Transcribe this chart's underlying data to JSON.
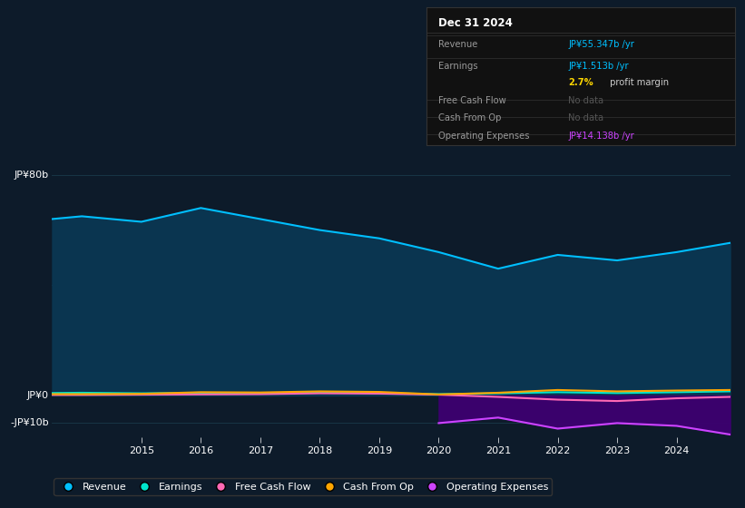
{
  "bg_color": "#0d1b2a",
  "plot_bg_color": "#0d1b2a",
  "grid_color": "#1a3a4a",
  "title": "Dec 31 2024",
  "ylabel_top": "JP¥80b",
  "ylabel_zero": "JP¥0",
  "ylabel_bottom": "-JP¥10b",
  "ylim": [
    -15000000000,
    90000000000
  ],
  "y_ticks": [
    80000000000,
    40000000000,
    0,
    -10000000000
  ],
  "x_years": [
    2013.5,
    2014,
    2015,
    2016,
    2017,
    2018,
    2019,
    2020,
    2021,
    2022,
    2023,
    2024,
    2024.9
  ],
  "revenue": [
    64000000000.0,
    65000000000.0,
    63000000000.0,
    68000000000.0,
    64000000000.0,
    60000000000.0,
    57000000000.0,
    52000000000.0,
    46000000000.0,
    51000000000.0,
    49000000000.0,
    52000000000.0,
    55347000000.0
  ],
  "earnings": [
    900000000.0,
    1000000000.0,
    800000000.0,
    1000000000.0,
    900000000.0,
    1100000000.0,
    900000000.0,
    500000000.0,
    800000000.0,
    1200000000.0,
    900000000.0,
    1200000000.0,
    1513000000.0
  ],
  "free_cash_flow": [
    200000000.0,
    200000000.0,
    300000000.0,
    400000000.0,
    500000000.0,
    800000000.0,
    700000000.0,
    300000000.0,
    -500000000.0,
    -1500000000.0,
    -2000000000.0,
    -1000000000.0,
    -500000000.0
  ],
  "cash_from_op": [
    500000000.0,
    500000000.0,
    600000000.0,
    1200000000.0,
    1100000000.0,
    1500000000.0,
    1300000000.0,
    400000000.0,
    1000000000.0,
    2000000000.0,
    1500000000.0,
    1800000000.0,
    2000000000.0
  ],
  "op_expenses_x": [
    2020,
    2021,
    2022,
    2023,
    2024,
    2024.9
  ],
  "op_expenses": [
    -10000000000.0,
    -8000000000.0,
    -12000000000.0,
    -10000000000.0,
    -11000000000.0,
    -14138000000.0
  ],
  "revenue_color": "#00bfff",
  "revenue_fill": "#0a3550",
  "earnings_color": "#00e5cc",
  "fcf_color": "#ff69b4",
  "cashop_color": "#ffa500",
  "opex_color": "#cc44ff",
  "opex_fill": "#3d0070",
  "legend_items": [
    "Revenue",
    "Earnings",
    "Free Cash Flow",
    "Cash From Op",
    "Operating Expenses"
  ],
  "legend_colors": [
    "#00bfff",
    "#00e5cc",
    "#ff69b4",
    "#ffa500",
    "#cc44ff"
  ]
}
